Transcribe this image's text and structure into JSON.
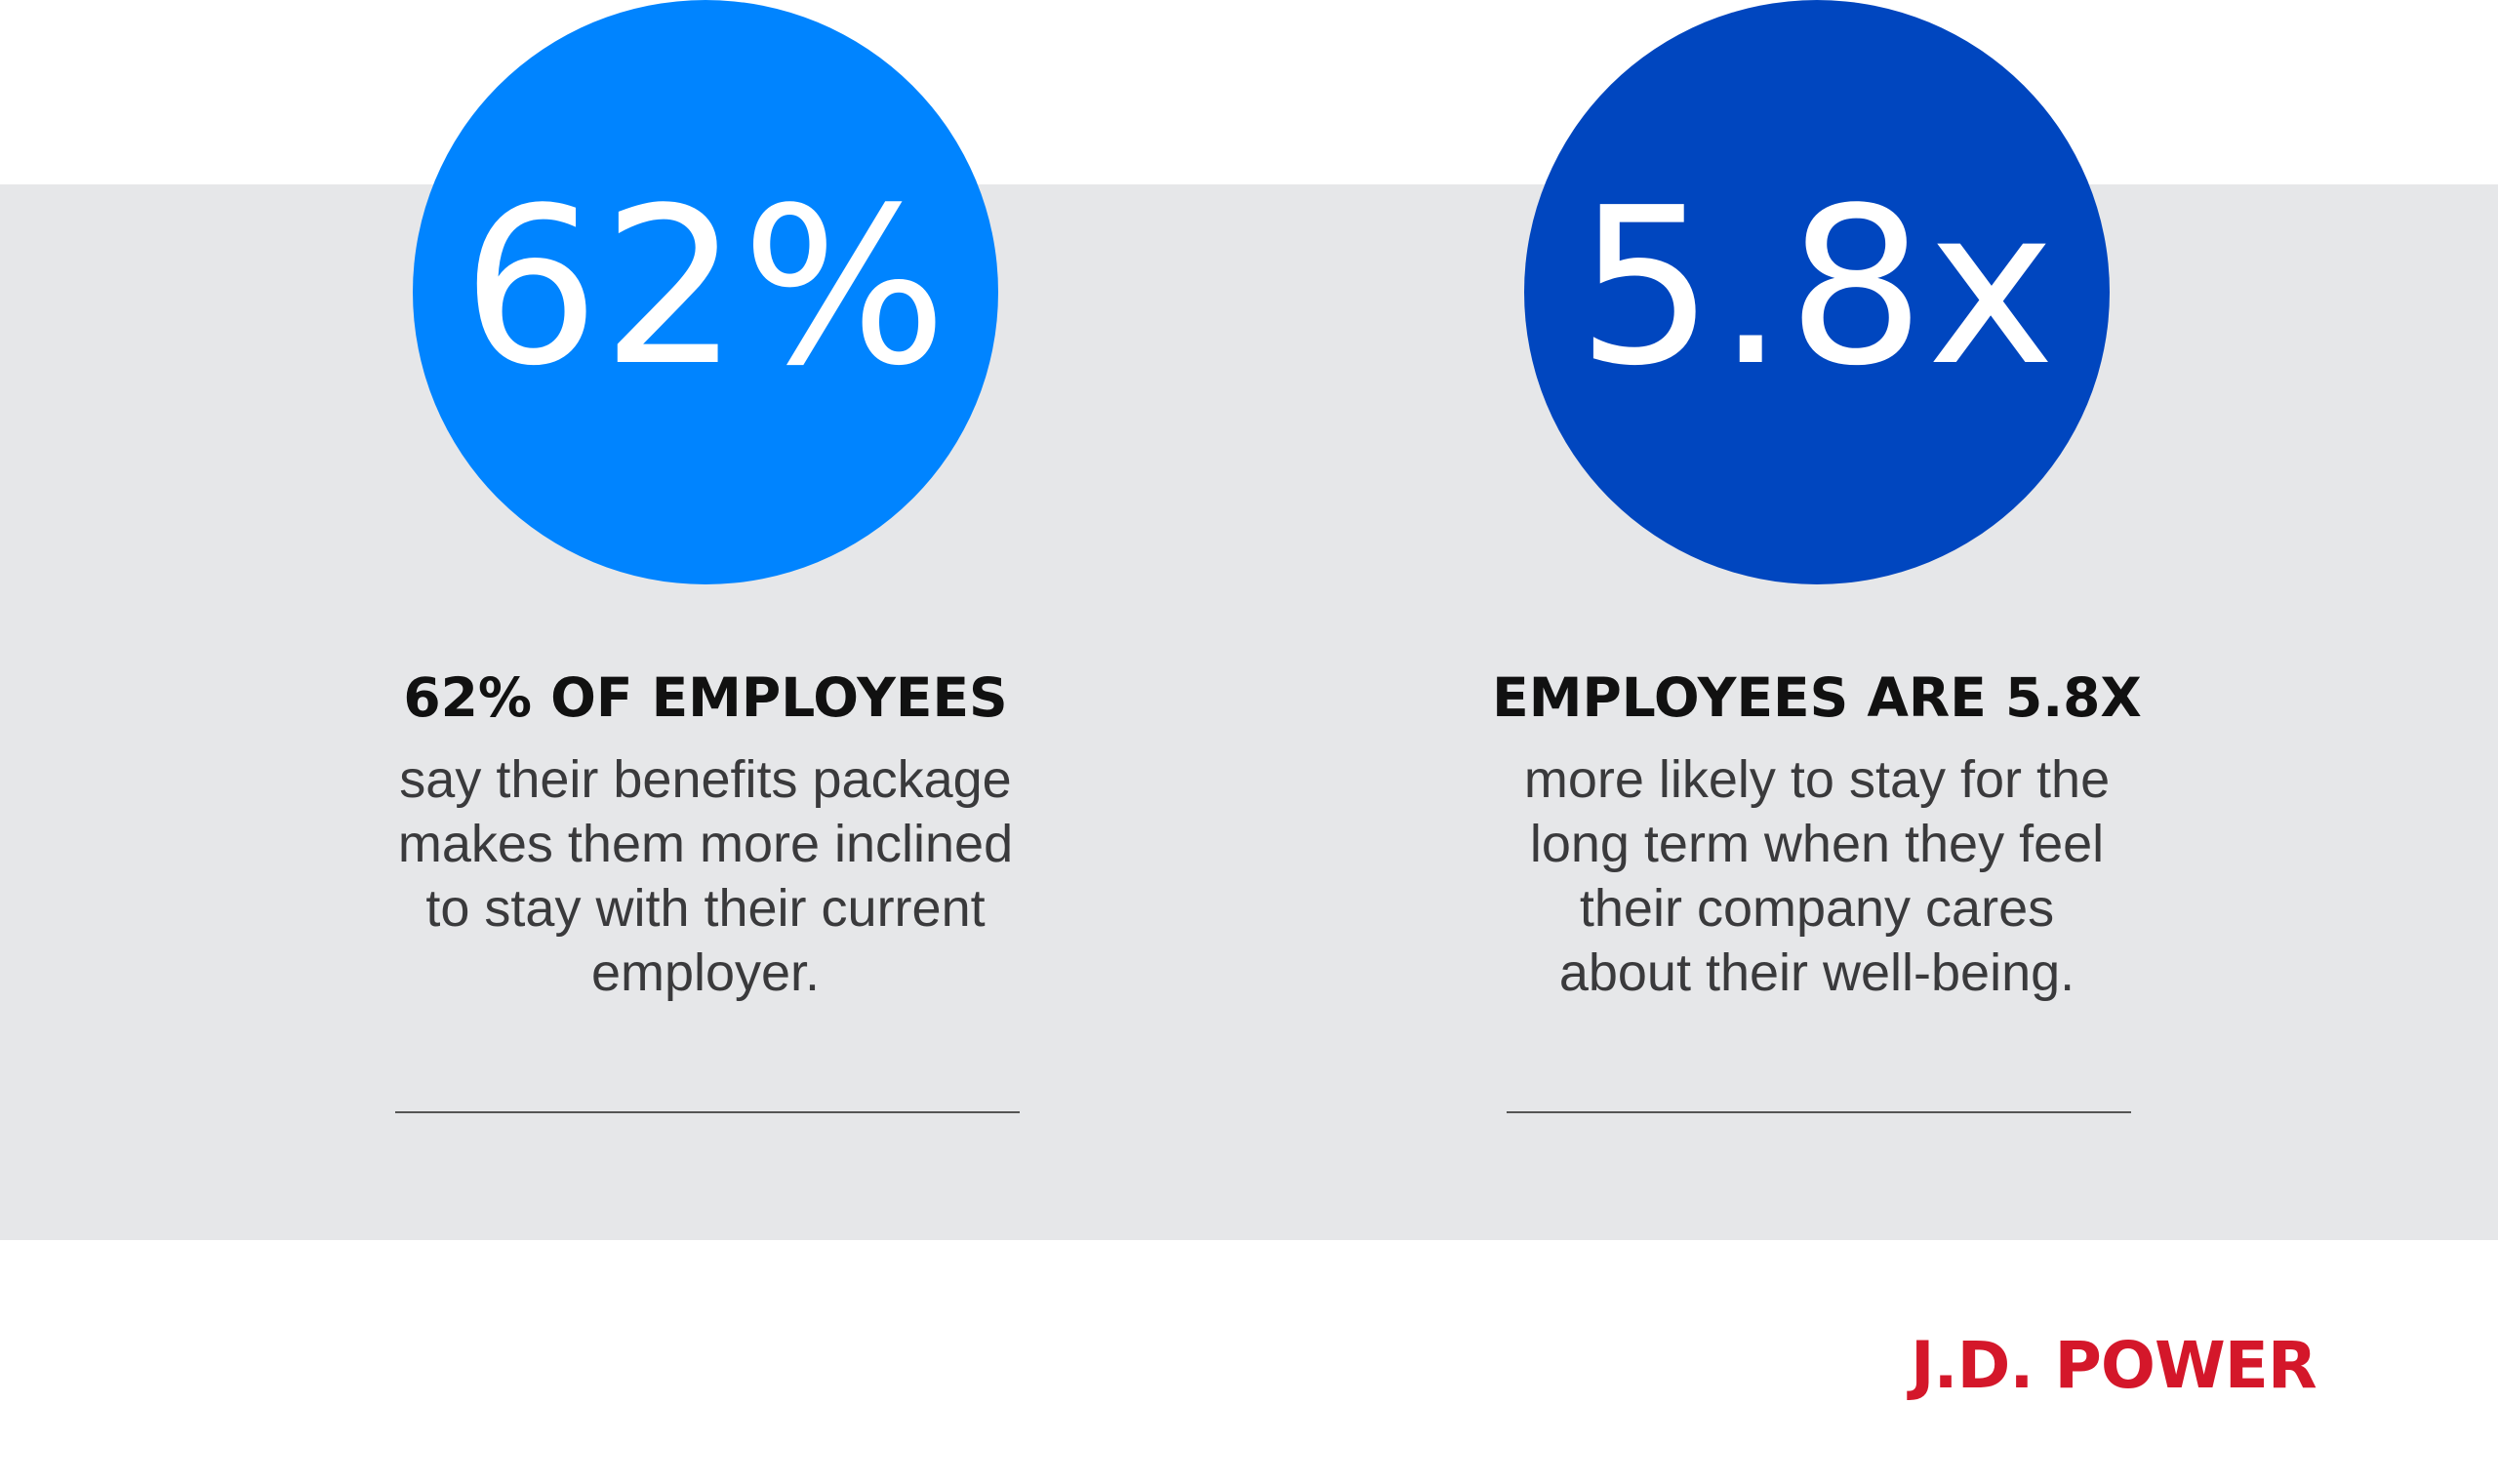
{
  "colors": {
    "band": "#e6e7e9",
    "circle_left": "#0084ff",
    "circle_right": "#0046bf",
    "logo_red": "#d4172a"
  },
  "stats": [
    {
      "value": "62%",
      "headline": "62% OF EMPLOYEES",
      "body_lines": [
        "say their benefits package",
        "makes them more inclined",
        "to stay with their current",
        "employer."
      ]
    },
    {
      "value": "5.8x",
      "headline": "EMPLOYEES ARE 5.8X",
      "body_lines": [
        "more likely to stay for the",
        "long term when they feel",
        "their company cares",
        "about their well-being."
      ]
    }
  ],
  "logo": {
    "text": "J.D. POWER"
  }
}
